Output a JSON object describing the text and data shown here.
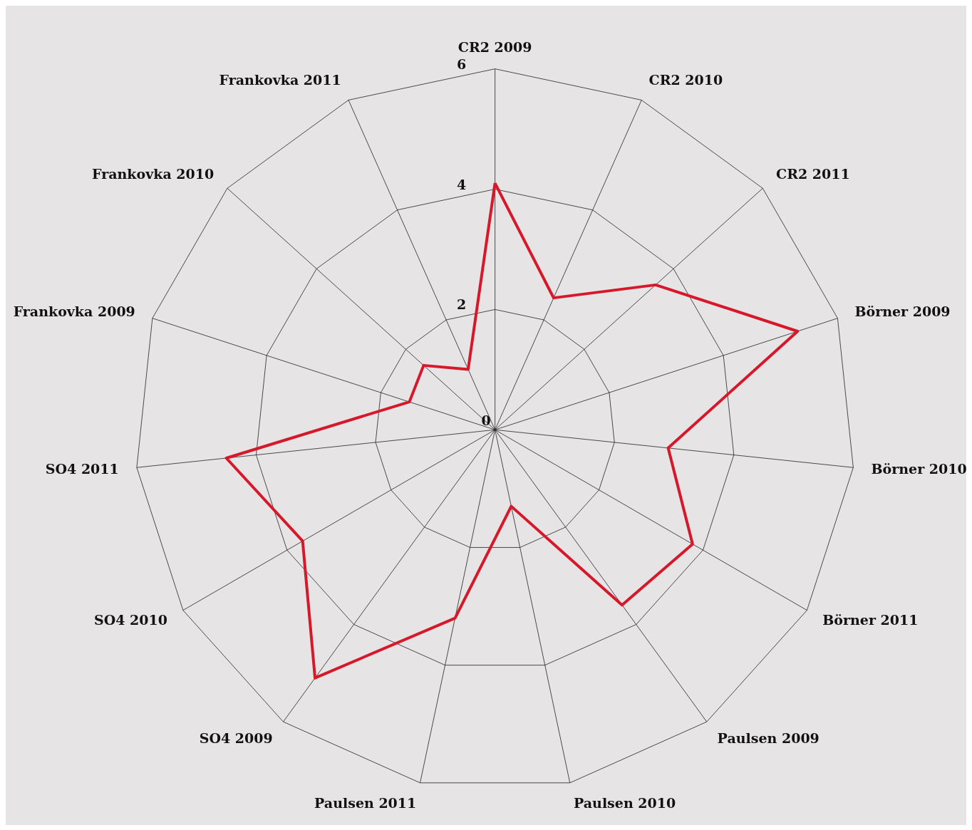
{
  "chart_data": {
    "type": "radar",
    "categories": [
      "CR2 2009",
      "CR2 2010",
      "CR2 2011",
      "Börner 2009",
      "Börner 2010",
      "Börner 2011",
      "Paulsen 2009",
      "Paulsen 2010",
      "Paulsen 2011",
      "SO4 2009",
      "SO4 2010",
      "SO4 2011",
      "Frankovka 2009",
      "Frankovka 2010",
      "Frankovka 2011"
    ],
    "series": [
      {
        "color": "#d7182a",
        "values": [
          4.1,
          2.4,
          3.6,
          5.3,
          2.9,
          3.8,
          3.6,
          1.3,
          3.2,
          5.1,
          3.7,
          4.5,
          1.5,
          1.6,
          1.1
        ]
      }
    ],
    "ylim": [
      0,
      6
    ],
    "yticks": [
      0,
      2,
      4,
      6
    ],
    "grid": true
  }
}
